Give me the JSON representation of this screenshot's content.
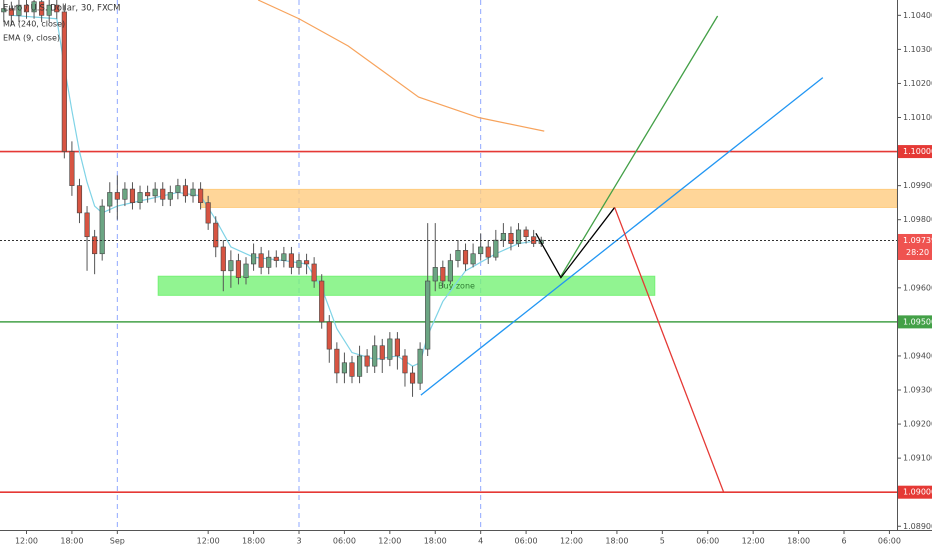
{
  "chart_data": {
    "type": "candlestick",
    "title": "Euro / U.S. Dollar, 30, FXCM",
    "x": [
      -15,
      -14,
      -13,
      -12,
      -11,
      -10,
      -9,
      -8,
      -7,
      -6,
      -5,
      -4,
      -3,
      -2,
      -1,
      0,
      1,
      2,
      3,
      4,
      5,
      6,
      7,
      8,
      9,
      10,
      11,
      12,
      13,
      14,
      15,
      16,
      17,
      18,
      19,
      20,
      21,
      22,
      23,
      24,
      25,
      26,
      27,
      28,
      29,
      30,
      31,
      32,
      33,
      34,
      35,
      36,
      37,
      38,
      39,
      40,
      41,
      42,
      43,
      44,
      45,
      46,
      47,
      48,
      49,
      50,
      51,
      52,
      53,
      54,
      55,
      56
    ],
    "open": [
      1.1041,
      1.1042,
      1.104,
      1.1043,
      1.1041,
      1.1044,
      1.104,
      1.1043,
      1.1041,
      1.1,
      1.099,
      1.0982,
      1.0975,
      1.097,
      1.0984,
      1.0988,
      1.0986,
      1.0989,
      1.0985,
      1.0988,
      1.0987,
      1.0989,
      1.0986,
      1.0988,
      1.099,
      1.0987,
      1.0989,
      1.0985,
      1.0979,
      1.0972,
      1.0965,
      1.0968,
      1.0963,
      1.0967,
      1.097,
      1.0966,
      1.0969,
      1.0968,
      1.097,
      1.0966,
      1.0968,
      1.0967,
      1.0962,
      1.095,
      1.0942,
      1.0935,
      1.0938,
      1.0934,
      1.094,
      1.0937,
      1.0943,
      1.0939,
      1.0945,
      1.094,
      1.0935,
      1.0932,
      1.0942,
      1.0962,
      1.0966,
      1.0962,
      1.0968,
      1.0971,
      1.0967,
      1.097,
      1.0972,
      1.0969,
      1.0974,
      1.0976,
      1.0973,
      1.0977,
      1.0975,
      1.0973
    ],
    "high": [
      1.1045,
      1.1044,
      1.1045,
      1.1045,
      1.1046,
      1.1046,
      1.1045,
      1.1045,
      1.1043,
      1.1003,
      1.0992,
      1.0984,
      1.0977,
      1.0986,
      1.0991,
      1.0993,
      1.0991,
      1.0991,
      1.099,
      1.099,
      1.0991,
      1.0991,
      1.099,
      1.0992,
      1.0992,
      1.0991,
      1.0991,
      1.0987,
      1.0981,
      1.0974,
      1.0971,
      1.097,
      1.0969,
      1.0973,
      1.0972,
      1.0971,
      1.0971,
      1.0972,
      1.0972,
      1.097,
      1.097,
      1.0969,
      1.0964,
      1.0952,
      1.0944,
      1.0941,
      1.094,
      1.0943,
      1.0942,
      1.0946,
      1.0945,
      1.0947,
      1.0947,
      1.0942,
      1.0937,
      1.0944,
      1.0979,
      1.0979,
      1.0968,
      1.097,
      1.0974,
      1.0973,
      1.0973,
      1.0976,
      1.0974,
      1.0977,
      1.0979,
      1.0978,
      1.0979,
      1.0978,
      1.0977,
      1.0975
    ],
    "low": [
      1.1038,
      1.1037,
      1.1038,
      1.1039,
      1.1039,
      1.1038,
      1.1038,
      1.1039,
      1.0998,
      1.0987,
      1.0979,
      1.0965,
      1.0964,
      1.0968,
      1.0982,
      1.098,
      1.0984,
      1.0983,
      1.0983,
      1.0985,
      1.0985,
      1.0984,
      1.0984,
      1.0986,
      1.0985,
      1.0985,
      1.0983,
      1.0977,
      1.0969,
      1.0959,
      1.096,
      1.0961,
      1.0961,
      1.0965,
      1.0964,
      1.0964,
      1.0966,
      1.0966,
      1.0964,
      1.0964,
      1.0964,
      1.096,
      1.0948,
      1.0938,
      1.0932,
      1.0932,
      1.0932,
      1.0932,
      1.0935,
      1.0935,
      1.0935,
      1.0937,
      1.0936,
      1.0931,
      1.0928,
      1.093,
      1.094,
      1.0959,
      1.096,
      1.0961,
      1.0966,
      1.0965,
      1.0966,
      1.0968,
      1.0967,
      1.0968,
      1.0972,
      1.0971,
      1.0972,
      1.0973,
      1.0972,
      1.0972
    ],
    "close": [
      1.1042,
      1.104,
      1.1043,
      1.1041,
      1.1044,
      1.104,
      1.1043,
      1.1041,
      1.1,
      1.099,
      1.0982,
      1.0975,
      1.097,
      1.0984,
      1.0988,
      1.0986,
      1.0989,
      1.0985,
      1.0988,
      1.0987,
      1.0989,
      1.0986,
      1.0988,
      1.099,
      1.0987,
      1.0989,
      1.0985,
      1.0979,
      1.0972,
      1.0965,
      1.0968,
      1.0963,
      1.0967,
      1.097,
      1.0966,
      1.0969,
      1.0968,
      1.097,
      1.0966,
      1.0968,
      1.0967,
      1.0962,
      1.095,
      1.0942,
      1.0935,
      1.0938,
      1.0934,
      1.094,
      1.0937,
      1.0943,
      1.0939,
      1.0945,
      1.094,
      1.0935,
      1.0932,
      1.0942,
      1.0962,
      1.0966,
      1.0962,
      1.0968,
      1.0971,
      1.0967,
      1.097,
      1.0972,
      1.0969,
      1.0974,
      1.0976,
      1.0973,
      1.0977,
      1.0975,
      1.0973,
      1.0974
    ],
    "up_color": "#6ba583",
    "down_color": "#d75442",
    "indicators": [
      {
        "name": "MA (240, close)",
        "color": "#f7a35c",
        "x": [
          18.6,
          24,
          30.5,
          39.8,
          47.7,
          56.4
        ],
        "values": [
          1.10445,
          1.1039,
          1.1031,
          1.1016,
          1.101,
          1.1006
        ]
      },
      {
        "name": "EMA (9, close)",
        "color": "#7fd3e6",
        "x": [
          -14,
          -8,
          -7,
          -6,
          -5,
          -4,
          -3,
          -2,
          0,
          4,
          8,
          11,
          13,
          15,
          18,
          22,
          25,
          27,
          29,
          31,
          34,
          37,
          39,
          40,
          41,
          43,
          46,
          50,
          53,
          56
        ],
        "values": [
          1.104,
          1.1039,
          1.1025,
          1.1012,
          1.1,
          1.0991,
          1.0984,
          1.0982,
          1.0984,
          1.0986,
          1.0988,
          1.0987,
          1.098,
          1.0972,
          1.0969,
          1.0968,
          1.0967,
          1.096,
          1.0948,
          1.0941,
          1.0939,
          1.094,
          1.0937,
          1.0938,
          1.0946,
          1.0956,
          1.0965,
          1.097,
          1.0973,
          1.0974
        ]
      }
    ],
    "xlim": [
      -15.5,
      103
    ],
    "ylim": [
      1.08889,
      1.10445
    ],
    "xticks": [
      {
        "value": -12,
        "label": "12:00"
      },
      {
        "value": -6,
        "label": "18:00"
      },
      {
        "value": 0,
        "label": "Sep"
      },
      {
        "value": 12,
        "label": "12:00"
      },
      {
        "value": 18,
        "label": "18:00"
      },
      {
        "value": 24,
        "label": "3"
      },
      {
        "value": 30,
        "label": "06:00"
      },
      {
        "value": 36,
        "label": "12:00"
      },
      {
        "value": 42,
        "label": "18:00"
      },
      {
        "value": 48,
        "label": "4"
      },
      {
        "value": 54,
        "label": "06:00"
      },
      {
        "value": 60,
        "label": "12:00"
      },
      {
        "value": 66,
        "label": "18:00"
      },
      {
        "value": 72,
        "label": "5"
      },
      {
        "value": 78,
        "label": "06:00"
      },
      {
        "value": 84,
        "label": "12:00"
      },
      {
        "value": 90,
        "label": "18:00"
      },
      {
        "value": 96,
        "label": "6"
      },
      {
        "value": 102,
        "label": "06:00"
      }
    ],
    "yticks": [
      {
        "value": 1.104,
        "label": "1.10400"
      },
      {
        "value": 1.103,
        "label": "1.10300"
      },
      {
        "value": 1.102,
        "label": "1.10200"
      },
      {
        "value": 1.101,
        "label": "1.10100"
      },
      {
        "value": 1.099,
        "label": "1.09900"
      },
      {
        "value": 1.098,
        "label": "1.09800"
      },
      {
        "value": 1.097,
        "label": "1.09700"
      },
      {
        "value": 1.096,
        "label": "1.09600"
      },
      {
        "value": 1.094,
        "label": "1.09400"
      },
      {
        "value": 1.093,
        "label": "1.09300"
      },
      {
        "value": 1.092,
        "label": "1.09200"
      },
      {
        "value": 1.091,
        "label": "1.09100"
      },
      {
        "value": 1.089,
        "label": "1.08900"
      }
    ],
    "levels": [
      {
        "value": 1.1,
        "label": "1.10000",
        "color": "#e53935"
      },
      {
        "value": 1.095,
        "label": "1.09500",
        "color": "#43a047"
      },
      {
        "value": 1.09,
        "label": "1.09000",
        "color": "#e53935"
      }
    ],
    "current_price": {
      "value": 1.09739,
      "label": "1.09739",
      "countdown": "28:20",
      "color": "#ef5350"
    },
    "zones": [
      {
        "x": [
          11,
          103
        ],
        "y": [
          1.09836,
          1.09889
        ],
        "color": "#ffcc80"
      },
      {
        "x": [
          5.4,
          71
        ],
        "y": [
          1.09578,
          1.09634
        ],
        "color": "#76f176",
        "label": "Buy zone"
      }
    ],
    "drawings": [
      {
        "color": "#2196f3",
        "x": [
          40.1,
          93.2
        ],
        "y": [
          1.09285,
          1.10217
        ]
      },
      {
        "color": "#43a047",
        "x": [
          58.6,
          79.3
        ],
        "y": [
          1.09634,
          1.10398
        ]
      },
      {
        "color": "#000000",
        "x": [
          55.3,
          58.6,
          65.7
        ],
        "y": [
          1.0976,
          1.0963,
          1.09836
        ]
      },
      {
        "color": "#e53935",
        "x": [
          65.7,
          80.1
        ],
        "y": [
          1.09836,
          1.09
        ]
      }
    ]
  }
}
